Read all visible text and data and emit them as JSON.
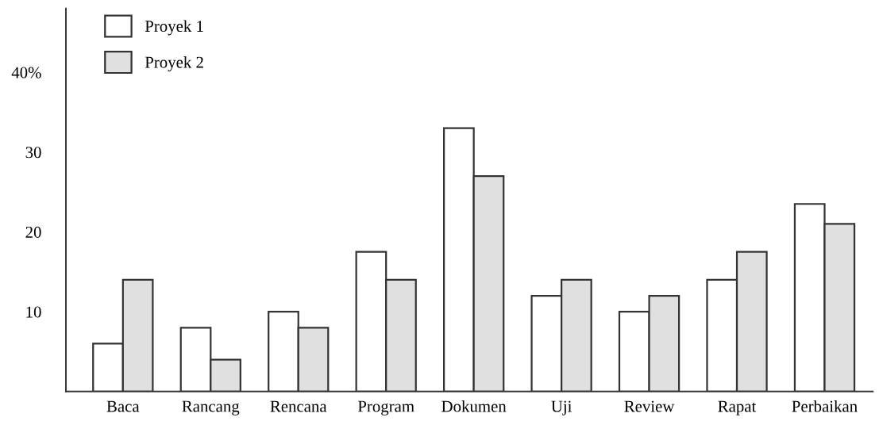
{
  "chart_data": {
    "type": "bar",
    "categories": [
      "Baca",
      "Rancang",
      "Rencana",
      "Program",
      "Dokumen",
      "Uji",
      "Review",
      "Rapat",
      "Perbaikan"
    ],
    "series": [
      {
        "name": "Proyek 1",
        "color": "#ffffff",
        "values": [
          6,
          8,
          10,
          17.5,
          33,
          12,
          10,
          14,
          23.5
        ]
      },
      {
        "name": "Proyek 2",
        "color": "#e0e0e0",
        "values": [
          14,
          4,
          8,
          14,
          27,
          14,
          12,
          17.5,
          21
        ]
      }
    ],
    "ylim": [
      0,
      48
    ],
    "yticks": [
      10,
      20,
      30,
      {
        "value": 40,
        "label": "40%"
      }
    ],
    "grid": false,
    "legend": "top left"
  }
}
